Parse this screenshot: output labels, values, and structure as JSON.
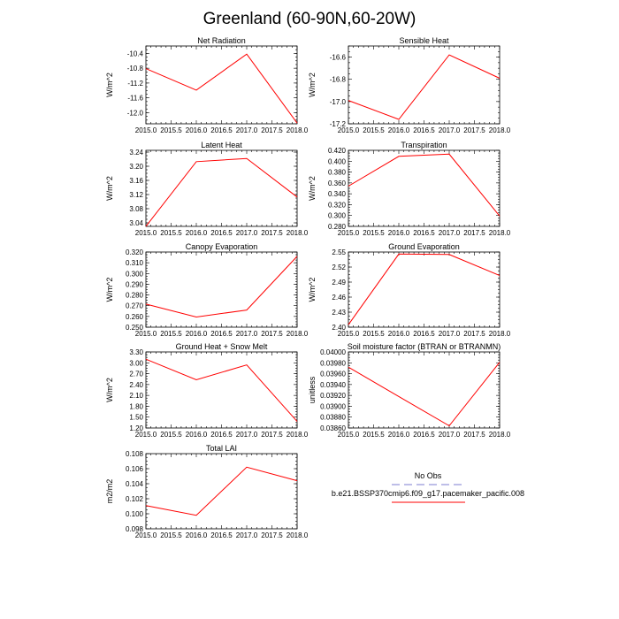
{
  "title": "Greenland (60-90N,60-20W)",
  "colors": {
    "series": "#ff0000",
    "obs": "#a9a9e0",
    "frame": "#000000"
  },
  "legend": {
    "placement": "bottom-right",
    "entries": [
      {
        "label": "No Obs",
        "color": "#a9a9e0",
        "style": "dashed"
      },
      {
        "label": "b.e21.BSSP370cmip6.f09_g17.pacemaker_pacific.008",
        "color": "#ff0000",
        "style": "solid"
      }
    ]
  },
  "chart_data": [
    {
      "type": "line",
      "title": "Net Radiation",
      "ylabel": "W/m^2",
      "x": [
        2015,
        2016,
        2017,
        2018
      ],
      "xlim": [
        2015,
        2018
      ],
      "xticks": [
        "2015.0",
        "2015.5",
        "2016.0",
        "2016.5",
        "2017.0",
        "2017.5",
        "2018.0"
      ],
      "y": [
        -10.81,
        -11.39,
        -10.42,
        -12.28
      ],
      "ylim": [
        -12.3,
        -10.2
      ],
      "yticks": [
        -12.0,
        -11.6,
        -11.2,
        -10.8,
        -10.4
      ],
      "ytick_labels": [
        "-12.0",
        "-11.6",
        "-11.2",
        "-10.8",
        "-10.4"
      ]
    },
    {
      "type": "line",
      "title": "Sensible Heat",
      "ylabel": "W/m^2",
      "x": [
        2015,
        2016,
        2017,
        2018
      ],
      "xlim": [
        2015,
        2018
      ],
      "xticks": [
        "2015.0",
        "2015.5",
        "2016.0",
        "2016.5",
        "2017.0",
        "2017.5",
        "2018.0"
      ],
      "y": [
        -16.99,
        -17.16,
        -16.58,
        -16.79
      ],
      "ylim": [
        -17.2,
        -16.5
      ],
      "yticks": [
        -17.2,
        -17.0,
        -16.8,
        -16.6
      ],
      "ytick_labels": [
        "-17.2",
        "-17.0",
        "-16.8",
        "-16.6"
      ]
    },
    {
      "type": "line",
      "title": "Latent Heat",
      "ylabel": "W/m^2",
      "x": [
        2015,
        2016,
        2017,
        2018
      ],
      "xlim": [
        2015,
        2018
      ],
      "xticks": [
        "2015.0",
        "2015.5",
        "2016.0",
        "2016.5",
        "2017.0",
        "2017.5",
        "2018.0"
      ],
      "y": [
        3.03,
        3.213,
        3.222,
        3.113
      ],
      "ylim": [
        3.03,
        3.245
      ],
      "yticks": [
        3.04,
        3.08,
        3.12,
        3.16,
        3.2,
        3.24
      ],
      "ytick_labels": [
        "3.04",
        "3.08",
        "3.12",
        "3.16",
        "3.20",
        "3.24"
      ]
    },
    {
      "type": "line",
      "title": "Transpiration",
      "ylabel": "W/m^2",
      "x": [
        2015,
        2016,
        2017,
        2018
      ],
      "xlim": [
        2015,
        2018
      ],
      "xticks": [
        "2015.0",
        "2015.5",
        "2016.0",
        "2016.5",
        "2017.0",
        "2017.5",
        "2018.0"
      ],
      "y": [
        0.354,
        0.409,
        0.413,
        0.299
      ],
      "ylim": [
        0.28,
        0.42
      ],
      "yticks": [
        0.28,
        0.3,
        0.32,
        0.34,
        0.36,
        0.38,
        0.4,
        0.42
      ],
      "ytick_labels": [
        "0.280",
        "0.300",
        "0.320",
        "0.340",
        "0.360",
        "0.380",
        "0.400",
        "0.420"
      ]
    },
    {
      "type": "line",
      "title": "Canopy Evaporation",
      "ylabel": "W/m^2",
      "x": [
        2015,
        2016,
        2017,
        2018
      ],
      "xlim": [
        2015,
        2018
      ],
      "xticks": [
        "2015.0",
        "2015.5",
        "2016.0",
        "2016.5",
        "2017.0",
        "2017.5",
        "2018.0"
      ],
      "y": [
        0.2715,
        0.2595,
        0.266,
        0.316
      ],
      "ylim": [
        0.25,
        0.32
      ],
      "yticks": [
        0.25,
        0.26,
        0.27,
        0.28,
        0.29,
        0.3,
        0.31,
        0.32
      ],
      "ytick_labels": [
        "0.250",
        "0.260",
        "0.270",
        "0.280",
        "0.290",
        "0.300",
        "0.310",
        "0.320"
      ]
    },
    {
      "type": "line",
      "title": "Ground Evaporation",
      "ylabel": "W/m^2",
      "x": [
        2015,
        2016,
        2017,
        2018
      ],
      "xlim": [
        2015,
        2018
      ],
      "xticks": [
        "2015.0",
        "2015.5",
        "2016.0",
        "2016.5",
        "2017.0",
        "2017.5",
        "2018.0"
      ],
      "y": [
        2.405,
        2.546,
        2.545,
        2.503
      ],
      "ylim": [
        2.4,
        2.55
      ],
      "yticks": [
        2.4,
        2.43,
        2.46,
        2.49,
        2.52,
        2.55
      ],
      "ytick_labels": [
        "2.40",
        "2.43",
        "2.46",
        "2.49",
        "2.52",
        "2.55"
      ]
    },
    {
      "type": "line",
      "title": "Ground Heat + Snow Melt",
      "ylabel": "W/m^2",
      "x": [
        2015,
        2016,
        2017,
        2018
      ],
      "xlim": [
        2015,
        2018
      ],
      "xticks": [
        "2015.0",
        "2015.5",
        "2016.0",
        "2016.5",
        "2017.0",
        "2017.5",
        "2018.0"
      ],
      "y": [
        3.1,
        2.53,
        2.94,
        1.38
      ],
      "ylim": [
        1.2,
        3.3
      ],
      "yticks": [
        1.2,
        1.5,
        1.8,
        2.1,
        2.4,
        2.7,
        3.0,
        3.3
      ],
      "ytick_labels": [
        "1.20",
        "1.50",
        "1.80",
        "2.10",
        "2.40",
        "2.70",
        "3.00",
        "3.30"
      ]
    },
    {
      "type": "line",
      "title": "Soil moisture factor (BTRAN or BTRANMN)",
      "ylabel": "unitless",
      "x": [
        2015,
        2016,
        2017,
        2018
      ],
      "xlim": [
        2015,
        2018
      ],
      "xticks": [
        "2015.0",
        "2015.5",
        "2016.0",
        "2016.5",
        "2017.0",
        "2017.5",
        "2018.0"
      ],
      "y": [
        0.03972,
        0.03918,
        0.03864,
        0.03981
      ],
      "ylim": [
        0.0386,
        0.04
      ],
      "yticks": [
        0.0386,
        0.0388,
        0.039,
        0.0392,
        0.0394,
        0.0396,
        0.0398,
        0.04
      ],
      "ytick_labels": [
        "0.03860",
        "0.03880",
        "0.03900",
        "0.03920",
        "0.03940",
        "0.03960",
        "0.03980",
        "0.04000"
      ]
    },
    {
      "type": "line",
      "title": "Total LAI",
      "ylabel": "m2/m2",
      "x": [
        2015,
        2016,
        2017,
        2018
      ],
      "xlim": [
        2015,
        2018
      ],
      "xticks": [
        "2015.0",
        "2015.5",
        "2016.0",
        "2016.5",
        "2017.0",
        "2017.5",
        "2018.0"
      ],
      "y": [
        0.1011,
        0.0998,
        0.1062,
        0.1044
      ],
      "ylim": [
        0.098,
        0.108
      ],
      "yticks": [
        0.098,
        0.1,
        0.102,
        0.104,
        0.106,
        0.108
      ],
      "ytick_labels": [
        "0.098",
        "0.100",
        "0.102",
        "0.104",
        "0.106",
        "0.108"
      ]
    }
  ]
}
